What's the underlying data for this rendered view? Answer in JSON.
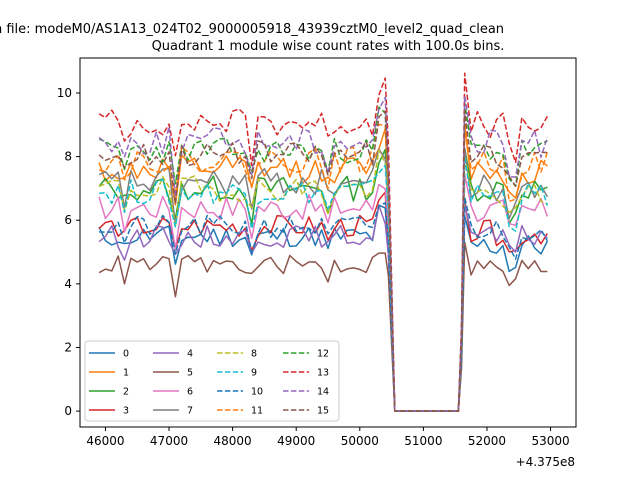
{
  "suptitle": "n file: modeM0/AS1A13_024T02_9000005918_43939cztM0_level2_quad_clean",
  "chart_data": {
    "type": "line",
    "title": "Quadrant 1 module wise count rates with 100.0s bins.",
    "xlabel": "",
    "ylabel": "",
    "x_offset_label": "+4.375e8",
    "xlim": [
      45600,
      53400
    ],
    "ylim": [
      -0.5,
      11.1
    ],
    "xticks": [
      46000,
      47000,
      48000,
      49000,
      50000,
      51000,
      52000,
      53000
    ],
    "xtick_labels": [
      "46000",
      "47000",
      "48000",
      "49000",
      "50000",
      "51000",
      "52000",
      "53000"
    ],
    "yticks": [
      0,
      2,
      4,
      6,
      8,
      10
    ],
    "ytick_labels": [
      "0",
      "2",
      "4",
      "6",
      "8",
      "10"
    ],
    "grid": false,
    "legend_position": "lower-left",
    "legend_columns": 4,
    "series": [
      {
        "name": "0",
        "color": "#1f77b4",
        "dash": "solid",
        "seed": 11,
        "pre_base": 5.5,
        "pre_amp": 0.35,
        "post_base": 5.2,
        "post_amp": 0.4,
        "end_val": 3.9
      },
      {
        "name": "1",
        "color": "#ff7f0e",
        "dash": "solid",
        "seed": 12,
        "pre_base": 7.6,
        "pre_amp": 0.45,
        "post_base": 7.6,
        "post_amp": 0.45,
        "end_val": 5.6
      },
      {
        "name": "2",
        "color": "#2ca02c",
        "dash": "solid",
        "seed": 13,
        "pre_base": 7.0,
        "pre_amp": 0.4,
        "post_base": 7.0,
        "post_amp": 0.4,
        "end_val": 5.0
      },
      {
        "name": "3",
        "color": "#d62728",
        "dash": "solid",
        "seed": 14,
        "pre_base": 5.8,
        "pre_amp": 0.35,
        "post_base": 5.6,
        "post_amp": 0.4,
        "end_val": 4.3
      },
      {
        "name": "4",
        "color": "#9467bd",
        "dash": "solid",
        "seed": 15,
        "pre_base": 5.5,
        "pre_amp": 0.35,
        "post_base": 5.5,
        "post_amp": 0.35,
        "end_val": 4.2
      },
      {
        "name": "5",
        "color": "#8c564b",
        "dash": "solid",
        "seed": 16,
        "pre_base": 4.6,
        "pre_amp": 0.3,
        "post_base": 4.5,
        "post_amp": 0.35,
        "end_val": 3.4
      },
      {
        "name": "6",
        "color": "#e377c2",
        "dash": "solid",
        "seed": 17,
        "pre_base": 6.4,
        "pre_amp": 0.4,
        "post_base": 6.3,
        "post_amp": 0.4,
        "end_val": 4.6
      },
      {
        "name": "7",
        "color": "#7f7f7f",
        "dash": "solid",
        "seed": 18,
        "pre_base": 7.2,
        "pre_amp": 0.45,
        "post_base": 7.0,
        "post_amp": 0.45,
        "end_val": 5.1
      },
      {
        "name": "8",
        "color": "#bcbd22",
        "dash": "dashed",
        "seed": 19,
        "pre_base": 7.0,
        "pre_amp": 0.4,
        "post_base": 6.8,
        "post_amp": 0.4,
        "end_val": 5.0
      },
      {
        "name": "9",
        "color": "#17becf",
        "dash": "dashed",
        "seed": 20,
        "pre_base": 6.9,
        "pre_amp": 0.4,
        "post_base": 6.8,
        "post_amp": 0.4,
        "end_val": 4.9
      },
      {
        "name": "10",
        "color": "#1f77b4",
        "dash": "dashed",
        "seed": 21,
        "pre_base": 5.8,
        "pre_amp": 0.35,
        "post_base": 5.7,
        "post_amp": 0.35,
        "end_val": 4.2
      },
      {
        "name": "11",
        "color": "#ff7f0e",
        "dash": "dashed",
        "seed": 22,
        "pre_base": 7.9,
        "pre_amp": 0.4,
        "post_base": 7.8,
        "post_amp": 0.4,
        "end_val": 5.7
      },
      {
        "name": "12",
        "color": "#2ca02c",
        "dash": "dashed",
        "seed": 23,
        "pre_base": 8.2,
        "pre_amp": 0.4,
        "post_base": 8.2,
        "post_amp": 0.4,
        "end_val": 5.9
      },
      {
        "name": "13",
        "color": "#d62728",
        "dash": "dashed",
        "seed": 24,
        "pre_base": 9.1,
        "pre_amp": 0.45,
        "post_base": 9.0,
        "post_amp": 0.45,
        "end_val": 6.5
      },
      {
        "name": "14",
        "color": "#9467bd",
        "dash": "dashed",
        "seed": 25,
        "pre_base": 8.5,
        "pre_amp": 0.45,
        "post_base": 8.4,
        "post_amp": 0.45,
        "end_val": 6.2
      },
      {
        "name": "15",
        "color": "#8c564b",
        "dash": "dashed",
        "seed": 26,
        "pre_base": 8.1,
        "pre_amp": 0.4,
        "post_base": 8.0,
        "post_amp": 0.4,
        "end_val": 5.8
      }
    ],
    "time_grid": {
      "start": 45900,
      "pre_end": 50400,
      "gap_start": 50550,
      "gap_end": 51550,
      "post_start": 51650,
      "end": 53000,
      "step": 100
    },
    "shared_dips": [
      {
        "x": 46300,
        "depth": 0.6
      },
      {
        "x": 47100,
        "depth": 1.3
      },
      {
        "x": 48300,
        "depth": 0.9
      },
      {
        "x": 49500,
        "depth": 0.7
      },
      {
        "x": 52400,
        "depth": 0.9
      },
      {
        "x": 53000,
        "depth": 0.0
      }
    ],
    "pre_end_peak": 10.3
  }
}
